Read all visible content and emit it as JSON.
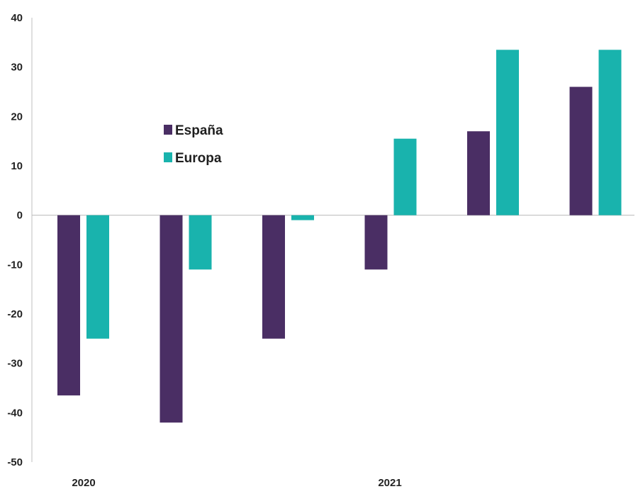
{
  "chart_data": {
    "type": "bar",
    "title": "",
    "xlabel": "",
    "ylabel": "",
    "ylim": [
      -50,
      40
    ],
    "y_ticks": [
      40,
      30,
      20,
      10,
      0,
      -10,
      -20,
      -30,
      -40,
      -50
    ],
    "grid": false,
    "legend_position": "upper-left-center",
    "categories": [
      "2020",
      "",
      "",
      "2021",
      "",
      ""
    ],
    "x_group_labels": [
      "2020",
      "2021"
    ],
    "series": [
      {
        "name": "España",
        "color": "#4a2e64",
        "values": [
          -36.5,
          -42,
          -25,
          -11,
          17,
          26
        ]
      },
      {
        "name": "Europa",
        "color": "#19b3ad",
        "values": [
          -25,
          -11,
          -1,
          15.5,
          33.5,
          33.5
        ]
      }
    ]
  }
}
